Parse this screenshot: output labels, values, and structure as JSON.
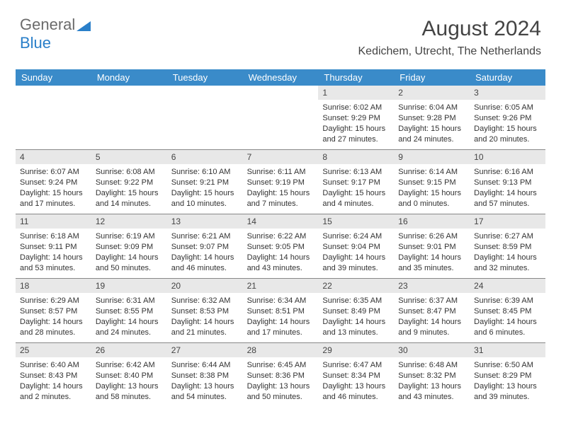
{
  "logo": {
    "text1": "General",
    "text2": "Blue"
  },
  "title": "August 2024",
  "subtitle": "Kedichem, Utrecht, The Netherlands",
  "colors": {
    "header_bg": "#3a8bc9",
    "header_text": "#ffffff",
    "daynum_bg": "#e8e8e8",
    "border": "#888888",
    "text": "#333333"
  },
  "dayNames": [
    "Sunday",
    "Monday",
    "Tuesday",
    "Wednesday",
    "Thursday",
    "Friday",
    "Saturday"
  ],
  "weeks": [
    [
      {
        "n": "",
        "l1": "",
        "l2": "",
        "l3": "",
        "l4": ""
      },
      {
        "n": "",
        "l1": "",
        "l2": "",
        "l3": "",
        "l4": ""
      },
      {
        "n": "",
        "l1": "",
        "l2": "",
        "l3": "",
        "l4": ""
      },
      {
        "n": "",
        "l1": "",
        "l2": "",
        "l3": "",
        "l4": ""
      },
      {
        "n": "1",
        "l1": "Sunrise: 6:02 AM",
        "l2": "Sunset: 9:29 PM",
        "l3": "Daylight: 15 hours",
        "l4": "and 27 minutes."
      },
      {
        "n": "2",
        "l1": "Sunrise: 6:04 AM",
        "l2": "Sunset: 9:28 PM",
        "l3": "Daylight: 15 hours",
        "l4": "and 24 minutes."
      },
      {
        "n": "3",
        "l1": "Sunrise: 6:05 AM",
        "l2": "Sunset: 9:26 PM",
        "l3": "Daylight: 15 hours",
        "l4": "and 20 minutes."
      }
    ],
    [
      {
        "n": "4",
        "l1": "Sunrise: 6:07 AM",
        "l2": "Sunset: 9:24 PM",
        "l3": "Daylight: 15 hours",
        "l4": "and 17 minutes."
      },
      {
        "n": "5",
        "l1": "Sunrise: 6:08 AM",
        "l2": "Sunset: 9:22 PM",
        "l3": "Daylight: 15 hours",
        "l4": "and 14 minutes."
      },
      {
        "n": "6",
        "l1": "Sunrise: 6:10 AM",
        "l2": "Sunset: 9:21 PM",
        "l3": "Daylight: 15 hours",
        "l4": "and 10 minutes."
      },
      {
        "n": "7",
        "l1": "Sunrise: 6:11 AM",
        "l2": "Sunset: 9:19 PM",
        "l3": "Daylight: 15 hours",
        "l4": "and 7 minutes."
      },
      {
        "n": "8",
        "l1": "Sunrise: 6:13 AM",
        "l2": "Sunset: 9:17 PM",
        "l3": "Daylight: 15 hours",
        "l4": "and 4 minutes."
      },
      {
        "n": "9",
        "l1": "Sunrise: 6:14 AM",
        "l2": "Sunset: 9:15 PM",
        "l3": "Daylight: 15 hours",
        "l4": "and 0 minutes."
      },
      {
        "n": "10",
        "l1": "Sunrise: 6:16 AM",
        "l2": "Sunset: 9:13 PM",
        "l3": "Daylight: 14 hours",
        "l4": "and 57 minutes."
      }
    ],
    [
      {
        "n": "11",
        "l1": "Sunrise: 6:18 AM",
        "l2": "Sunset: 9:11 PM",
        "l3": "Daylight: 14 hours",
        "l4": "and 53 minutes."
      },
      {
        "n": "12",
        "l1": "Sunrise: 6:19 AM",
        "l2": "Sunset: 9:09 PM",
        "l3": "Daylight: 14 hours",
        "l4": "and 50 minutes."
      },
      {
        "n": "13",
        "l1": "Sunrise: 6:21 AM",
        "l2": "Sunset: 9:07 PM",
        "l3": "Daylight: 14 hours",
        "l4": "and 46 minutes."
      },
      {
        "n": "14",
        "l1": "Sunrise: 6:22 AM",
        "l2": "Sunset: 9:05 PM",
        "l3": "Daylight: 14 hours",
        "l4": "and 43 minutes."
      },
      {
        "n": "15",
        "l1": "Sunrise: 6:24 AM",
        "l2": "Sunset: 9:04 PM",
        "l3": "Daylight: 14 hours",
        "l4": "and 39 minutes."
      },
      {
        "n": "16",
        "l1": "Sunrise: 6:26 AM",
        "l2": "Sunset: 9:01 PM",
        "l3": "Daylight: 14 hours",
        "l4": "and 35 minutes."
      },
      {
        "n": "17",
        "l1": "Sunrise: 6:27 AM",
        "l2": "Sunset: 8:59 PM",
        "l3": "Daylight: 14 hours",
        "l4": "and 32 minutes."
      }
    ],
    [
      {
        "n": "18",
        "l1": "Sunrise: 6:29 AM",
        "l2": "Sunset: 8:57 PM",
        "l3": "Daylight: 14 hours",
        "l4": "and 28 minutes."
      },
      {
        "n": "19",
        "l1": "Sunrise: 6:31 AM",
        "l2": "Sunset: 8:55 PM",
        "l3": "Daylight: 14 hours",
        "l4": "and 24 minutes."
      },
      {
        "n": "20",
        "l1": "Sunrise: 6:32 AM",
        "l2": "Sunset: 8:53 PM",
        "l3": "Daylight: 14 hours",
        "l4": "and 21 minutes."
      },
      {
        "n": "21",
        "l1": "Sunrise: 6:34 AM",
        "l2": "Sunset: 8:51 PM",
        "l3": "Daylight: 14 hours",
        "l4": "and 17 minutes."
      },
      {
        "n": "22",
        "l1": "Sunrise: 6:35 AM",
        "l2": "Sunset: 8:49 PM",
        "l3": "Daylight: 14 hours",
        "l4": "and 13 minutes."
      },
      {
        "n": "23",
        "l1": "Sunrise: 6:37 AM",
        "l2": "Sunset: 8:47 PM",
        "l3": "Daylight: 14 hours",
        "l4": "and 9 minutes."
      },
      {
        "n": "24",
        "l1": "Sunrise: 6:39 AM",
        "l2": "Sunset: 8:45 PM",
        "l3": "Daylight: 14 hours",
        "l4": "and 6 minutes."
      }
    ],
    [
      {
        "n": "25",
        "l1": "Sunrise: 6:40 AM",
        "l2": "Sunset: 8:43 PM",
        "l3": "Daylight: 14 hours",
        "l4": "and 2 minutes."
      },
      {
        "n": "26",
        "l1": "Sunrise: 6:42 AM",
        "l2": "Sunset: 8:40 PM",
        "l3": "Daylight: 13 hours",
        "l4": "and 58 minutes."
      },
      {
        "n": "27",
        "l1": "Sunrise: 6:44 AM",
        "l2": "Sunset: 8:38 PM",
        "l3": "Daylight: 13 hours",
        "l4": "and 54 minutes."
      },
      {
        "n": "28",
        "l1": "Sunrise: 6:45 AM",
        "l2": "Sunset: 8:36 PM",
        "l3": "Daylight: 13 hours",
        "l4": "and 50 minutes."
      },
      {
        "n": "29",
        "l1": "Sunrise: 6:47 AM",
        "l2": "Sunset: 8:34 PM",
        "l3": "Daylight: 13 hours",
        "l4": "and 46 minutes."
      },
      {
        "n": "30",
        "l1": "Sunrise: 6:48 AM",
        "l2": "Sunset: 8:32 PM",
        "l3": "Daylight: 13 hours",
        "l4": "and 43 minutes."
      },
      {
        "n": "31",
        "l1": "Sunrise: 6:50 AM",
        "l2": "Sunset: 8:29 PM",
        "l3": "Daylight: 13 hours",
        "l4": "and 39 minutes."
      }
    ]
  ]
}
